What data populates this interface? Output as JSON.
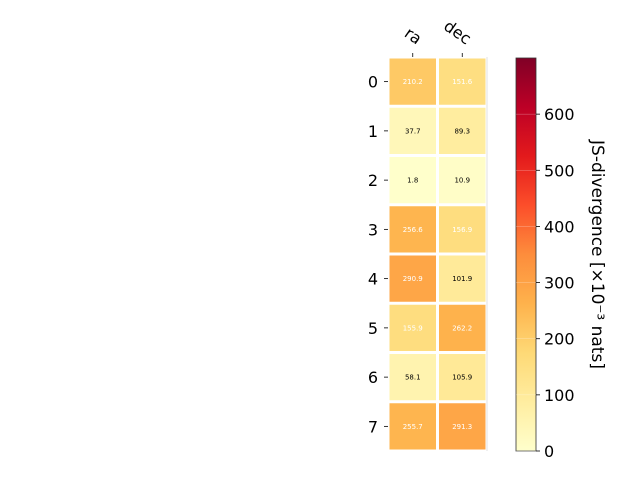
{
  "chart_data": {
    "type": "heatmap",
    "columns": [
      "ra",
      "dec"
    ],
    "rows": [
      "0",
      "1",
      "2",
      "3",
      "4",
      "5",
      "6",
      "7"
    ],
    "values": [
      [
        210.2,
        151.6
      ],
      [
        37.7,
        89.3
      ],
      [
        1.8,
        10.9
      ],
      [
        256.6,
        156.9
      ],
      [
        290.9,
        101.9
      ],
      [
        155.9,
        262.2
      ],
      [
        58.1,
        105.9
      ],
      [
        255.7,
        291.3
      ]
    ],
    "cell_labels": [
      [
        "210.2",
        "151.6"
      ],
      [
        "37.7",
        "89.3"
      ],
      [
        "1.8",
        "10.9"
      ],
      [
        "256.6",
        "156.9"
      ],
      [
        "290.9",
        "101.9"
      ],
      [
        "155.9",
        "262.2"
      ],
      [
        "58.1",
        "105.9"
      ],
      [
        "255.7",
        "291.3"
      ]
    ],
    "colorbar": {
      "label": "JS-divergence [×10⁻³ nats]",
      "range": [
        0,
        700
      ],
      "ticks": [
        "0",
        "100",
        "200",
        "300",
        "400",
        "500",
        "600"
      ],
      "tick_values": [
        0,
        100,
        200,
        300,
        400,
        500,
        600
      ],
      "colormap": "YlOrRd"
    },
    "colors": {
      "light_text": "#ffffff",
      "dark_text": "#000000",
      "cell_border": "#ffffff"
    }
  }
}
